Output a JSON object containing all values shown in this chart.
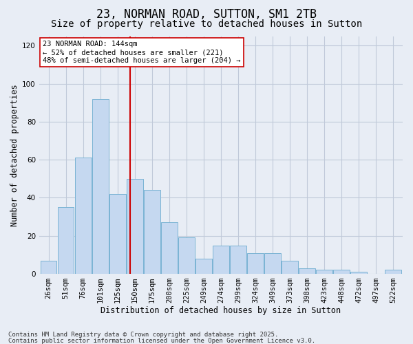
{
  "title": "23, NORMAN ROAD, SUTTON, SM1 2TB",
  "subtitle": "Size of property relative to detached houses in Sutton",
  "xlabel": "Distribution of detached houses by size in Sutton",
  "ylabel": "Number of detached properties",
  "categories": [
    "26sqm",
    "51sqm",
    "76sqm",
    "101sqm",
    "125sqm",
    "150sqm",
    "175sqm",
    "200sqm",
    "225sqm",
    "249sqm",
    "274sqm",
    "299sqm",
    "324sqm",
    "349sqm",
    "373sqm",
    "398sqm",
    "423sqm",
    "448sqm",
    "472sqm",
    "497sqm",
    "522sqm"
  ],
  "values": [
    7,
    35,
    61,
    92,
    42,
    50,
    44,
    27,
    19,
    8,
    15,
    15,
    11,
    11,
    7,
    3,
    2,
    2,
    1,
    0,
    2
  ],
  "bar_color": "#c5d8f0",
  "bar_edge_color": "#7ab3d4",
  "grid_color": "#c0c9d9",
  "background_color": "#e8edf5",
  "vline_x_index": 4.72,
  "vline_color": "#cc0000",
  "annotation_text": "23 NORMAN ROAD: 144sqm\n← 52% of detached houses are smaller (221)\n48% of semi-detached houses are larger (204) →",
  "annotation_box_color": "#ffffff",
  "annotation_box_edge": "#cc0000",
  "ylim": [
    0,
    125
  ],
  "yticks": [
    0,
    20,
    40,
    60,
    80,
    100,
    120
  ],
  "footer1": "Contains HM Land Registry data © Crown copyright and database right 2025.",
  "footer2": "Contains public sector information licensed under the Open Government Licence v3.0.",
  "title_fontsize": 12,
  "subtitle_fontsize": 10,
  "axis_label_fontsize": 8.5,
  "tick_fontsize": 7.5,
  "annotation_fontsize": 7.5,
  "footer_fontsize": 6.5
}
